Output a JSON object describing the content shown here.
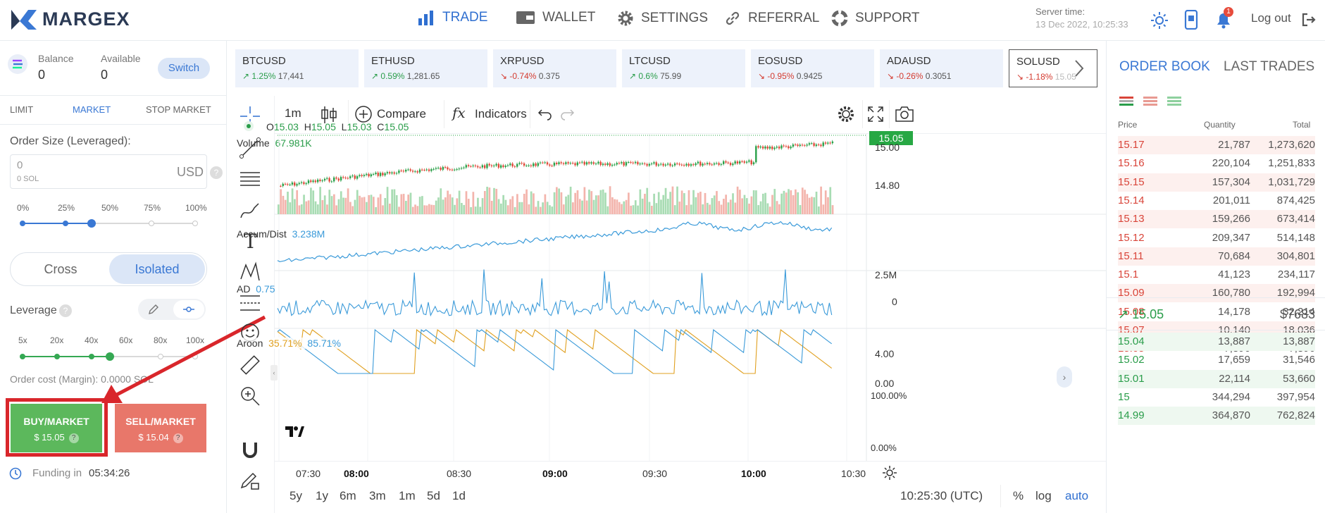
{
  "brand": "MARGEX",
  "nav": [
    {
      "label": "TRADE"
    },
    {
      "label": "WALLET"
    },
    {
      "label": "SETTINGS"
    },
    {
      "label": "REFERRAL"
    },
    {
      "label": "SUPPORT"
    }
  ],
  "server": {
    "label": "Server time:",
    "time": "13 Dec 2022, 10:25:33"
  },
  "notif_count": "1",
  "logout": "Log out",
  "account": {
    "balance_label": "Balance",
    "balance": "0",
    "available_label": "Available",
    "available": "0",
    "switch": "Switch"
  },
  "order_tabs": [
    "LIMIT",
    "MARKET",
    "STOP MARKET"
  ],
  "order_size": {
    "label": "Order Size (Leveraged):",
    "value": "0",
    "sub": "0 SOL",
    "unit": "USD"
  },
  "size_pcts": [
    "0%",
    "25%",
    "50%",
    "75%",
    "100%"
  ],
  "size_pct_selected": 50,
  "margin_modes": [
    "Cross",
    "Isolated"
  ],
  "leverage": {
    "label": "Leverage",
    "marks": [
      "5x",
      "20x",
      "40x",
      "60x",
      "80x",
      "100x"
    ],
    "selected": "60x"
  },
  "order_cost": "Order cost (Margin): 0.0000 SOL",
  "buy": {
    "label": "BUY/MARKET",
    "price": "$ 15.05"
  },
  "sell": {
    "label": "SELL/MARKET",
    "price": "$ 15.04"
  },
  "funding": {
    "label": "Funding in",
    "time": "05:34:26"
  },
  "tickers": [
    {
      "sym": "BTCUSD",
      "chg": "1.25%",
      "price": "17,441",
      "dir": "up"
    },
    {
      "sym": "ETHUSD",
      "chg": "0.59%",
      "price": "1,281.65",
      "dir": "up"
    },
    {
      "sym": "XRPUSD",
      "chg": "-0.74%",
      "price": "0.375",
      "dir": "dn"
    },
    {
      "sym": "LTCUSD",
      "chg": "0.6%",
      "price": "75.99",
      "dir": "up"
    },
    {
      "sym": "EOSUSD",
      "chg": "-0.95%",
      "price": "0.9425",
      "dir": "dn"
    },
    {
      "sym": "ADAUSD",
      "chg": "-0.26%",
      "price": "0.3051",
      "dir": "dn"
    },
    {
      "sym": "SOLUSD",
      "chg": "-1.18%",
      "price": "15.05",
      "dir": "dn"
    }
  ],
  "toolbar": {
    "interval": "1m",
    "compare": "Compare",
    "indicators": "Indicators"
  },
  "ohlc": {
    "o_l": "O",
    "o": "15.03",
    "h_l": "H",
    "h": "15.05",
    "l_l": "L",
    "l": "15.03",
    "c_l": "C",
    "c": "15.05"
  },
  "volume": {
    "label": "Volume",
    "value": "67.981K"
  },
  "price_axis": {
    "last": "15.05",
    "ticks": [
      "15.00",
      "14.80"
    ]
  },
  "accum": {
    "label": "Accum/Dist",
    "value": "3.238M",
    "ticks": [
      "2.5M",
      "0"
    ]
  },
  "ad": {
    "label": "AD",
    "value": "0.75",
    "ticks": [
      "4.00",
      "0.00"
    ]
  },
  "aroon": {
    "label": "Aroon",
    "up": "35.71%",
    "down": "85.71%",
    "ticks": [
      "100.00%",
      "0.00%"
    ]
  },
  "time_axis": [
    "07:30",
    "08:00",
    "08:30",
    "09:00",
    "09:30",
    "10:00",
    "10:30"
  ],
  "timeframes": [
    "5y",
    "1y",
    "6m",
    "3m",
    "1m",
    "5d",
    "1d"
  ],
  "clock": "10:25:30 (UTC)",
  "scale_opts": [
    "%",
    "log",
    "auto"
  ],
  "book": {
    "tabs": [
      "ORDER BOOK",
      "LAST TRADES"
    ],
    "headers": [
      "Price",
      "Quantity",
      "Total"
    ],
    "asks": [
      [
        "15.17",
        "21,787",
        "1,273,620"
      ],
      [
        "15.16",
        "220,104",
        "1,251,833"
      ],
      [
        "15.15",
        "157,304",
        "1,031,729"
      ],
      [
        "15.14",
        "201,011",
        "874,425"
      ],
      [
        "15.13",
        "159,266",
        "673,414"
      ],
      [
        "15.12",
        "209,347",
        "514,148"
      ],
      [
        "15.11",
        "70,684",
        "304,801"
      ],
      [
        "15.1",
        "41,123",
        "234,117"
      ],
      [
        "15.09",
        "160,780",
        "192,994"
      ],
      [
        "15.08",
        "14,178",
        "32,214"
      ],
      [
        "15.07",
        "10,140",
        "18,036"
      ],
      [
        "15.05",
        "7,896",
        "7,896"
      ]
    ],
    "mid": {
      "price": "15.05",
      "usd": "$7683"
    },
    "bids": [
      [
        "15.04",
        "13,887",
        "13,887"
      ],
      [
        "15.02",
        "17,659",
        "31,546"
      ],
      [
        "15.01",
        "22,114",
        "53,660"
      ],
      [
        "15",
        "344,294",
        "397,954"
      ],
      [
        "14.99",
        "364,870",
        "762,824"
      ]
    ]
  },
  "colors": {
    "accent": "#3a78d4",
    "buy": "#5cb85c",
    "sell": "#e8776a",
    "up": "#2a9d4a",
    "down": "#d43a2f",
    "highlight": "#d9262b"
  }
}
